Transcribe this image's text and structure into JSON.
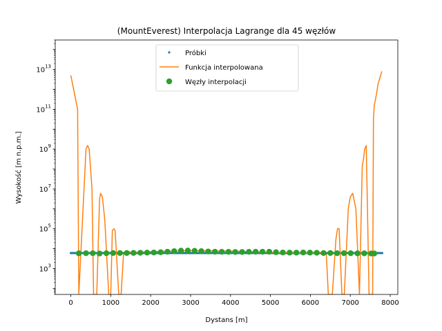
{
  "chart_data": {
    "type": "line",
    "title": "(MountEverest) Interpolacja Lagrange dla 45 węzłów",
    "xlabel": "Dystans [m]",
    "ylabel": "Wysokość [m n.p.m.]",
    "xscale": "linear",
    "yscale": "log",
    "xlim": [
      -390,
      8190
    ],
    "ylim": [
      50,
      300000000000000
    ],
    "xticks": [
      0,
      1000,
      2000,
      3000,
      4000,
      5000,
      6000,
      7000,
      8000
    ],
    "xtick_labels": [
      "0",
      "1000",
      "2000",
      "3000",
      "4000",
      "5000",
      "6000",
      "7000",
      "8000"
    ],
    "yticks": [
      1000,
      100000,
      10000000,
      1000000000,
      100000000000,
      10000000000000
    ],
    "ytick_labels": [
      {
        "base": "10",
        "exp": "3"
      },
      {
        "base": "10",
        "exp": "5"
      },
      {
        "base": "10",
        "exp": "7"
      },
      {
        "base": "10",
        "exp": "9"
      },
      {
        "base": "10",
        "exp": "11"
      },
      {
        "base": "10",
        "exp": "13"
      }
    ],
    "grid": false,
    "legend_position": "top-center",
    "colors": {
      "samples": "#1f77b4",
      "interpolated": "#ff7f0e",
      "nodes": "#2ca02c"
    },
    "series": [
      {
        "name": "Próbki",
        "marker": "dot",
        "x_range": [
          0,
          7800
        ],
        "y_approx": 6000
      },
      {
        "name": "Funkcja interpolowana",
        "marker": "line",
        "x": [
          0,
          170,
          200,
          380,
          420,
          460,
          530,
          570,
          650,
          720,
          745,
          790,
          850,
          950,
          1000,
          1040,
          1080,
          1110,
          1200,
          1260,
          1320,
          1400,
          1500,
          2000,
          3000,
          4000,
          5000,
          6000,
          6300,
          6400,
          6450,
          6500,
          6550,
          6640,
          6680,
          6720,
          6790,
          6850,
          6950,
          7000,
          7060,
          7140,
          7230,
          7300,
          7330,
          7360,
          7400,
          7470,
          7560,
          7580,
          7600,
          7650,
          7700,
          7790
        ],
        "y": [
          5000000000000,
          100000000000,
          50,
          1000000000,
          1500000000,
          1000000000,
          10000000,
          50,
          50,
          3000000,
          6000000,
          4000000,
          300000,
          50,
          50,
          80000,
          100000,
          80000,
          50,
          50,
          5000,
          8000,
          6500,
          7000,
          8000,
          7500,
          6500,
          6000,
          6500,
          5000,
          50,
          50,
          50,
          30000,
          100000,
          100000,
          50,
          50,
          1000000,
          4000000,
          6000000,
          1000000,
          50,
          150000000,
          300000000,
          1000000000,
          1500000000,
          50,
          50,
          30000000000,
          150000000000,
          500000000000,
          2000000000000,
          8000000000000
        ]
      },
      {
        "name": "Węzły interpolacji",
        "marker": "circle",
        "x": [
          200,
          380,
          550,
          720,
          890,
          1060,
          1230,
          1400,
          1570,
          1740,
          1910,
          2080,
          2250,
          2420,
          2590,
          2760,
          2930,
          3100,
          3270,
          3440,
          3610,
          3780,
          3950,
          4120,
          4290,
          4460,
          4630,
          4800,
          4970,
          5140,
          5310,
          5480,
          5650,
          5820,
          5990,
          6160,
          6330,
          6500,
          6670,
          6840,
          7010,
          7180,
          7350,
          7520,
          7600
        ],
        "y": [
          5800,
          5900,
          5900,
          5700,
          5900,
          6000,
          6000,
          6000,
          6100,
          6200,
          6300,
          6400,
          6600,
          7000,
          7500,
          7900,
          8000,
          7800,
          7500,
          7200,
          7000,
          6900,
          6900,
          6800,
          6800,
          6900,
          7000,
          7000,
          7000,
          6600,
          6400,
          6300,
          6300,
          6400,
          6300,
          6200,
          6000,
          6000,
          5900,
          5900,
          5900,
          5800,
          5800,
          5700,
          5700
        ]
      }
    ]
  }
}
